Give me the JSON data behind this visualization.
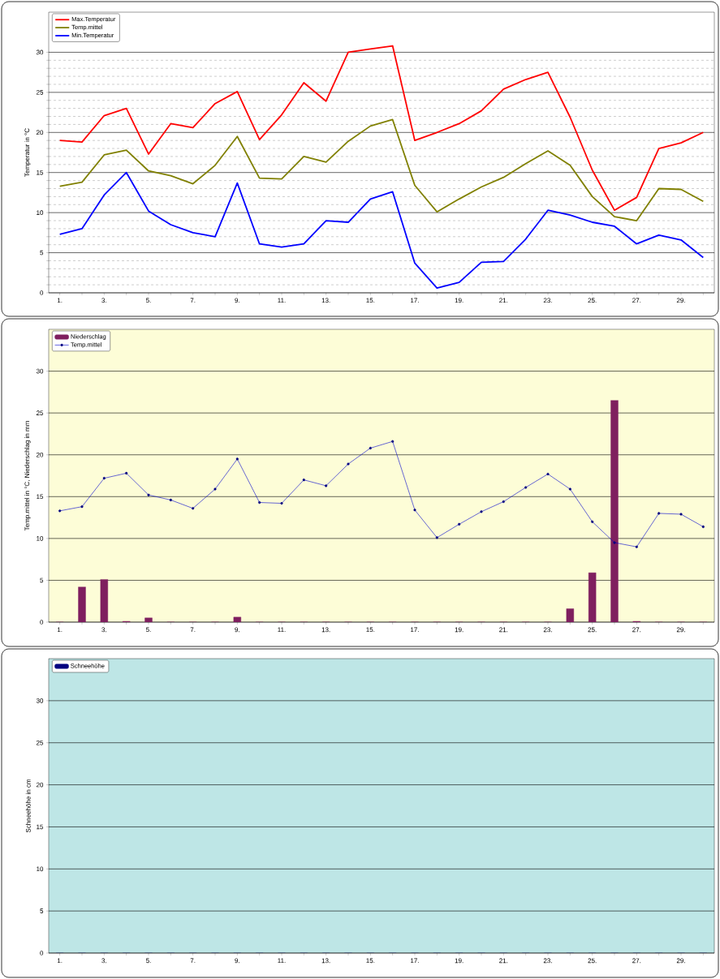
{
  "chart_data": [
    {
      "type": "line",
      "ylabel": "Temperatur  in °C",
      "categories": [
        "1.",
        null,
        "3.",
        null,
        "5.",
        null,
        "7.",
        null,
        "9.",
        null,
        "11.",
        null,
        "13.",
        null,
        "15.",
        null,
        "17.",
        null,
        "19.",
        null,
        "21.",
        null,
        "23.",
        null,
        "25.",
        null,
        "27.",
        null,
        "29.",
        null
      ],
      "series": [
        {
          "name": "Max.Temperatur",
          "color": "#ff0000",
          "values": [
            19.0,
            18.8,
            22.1,
            23.0,
            17.3,
            21.1,
            20.6,
            23.6,
            25.1,
            19.1,
            22.2,
            26.2,
            23.9,
            30.0,
            30.4,
            30.8,
            19.0,
            20.0,
            21.1,
            22.7,
            25.4,
            26.6,
            27.5,
            21.9,
            15.3,
            10.3,
            11.9,
            18.0,
            18.7,
            20.0
          ]
        },
        {
          "name": "Temp.mittel",
          "color": "#808000",
          "values": [
            13.3,
            13.8,
            17.2,
            17.8,
            15.2,
            14.6,
            13.6,
            15.9,
            19.5,
            14.3,
            14.2,
            17.0,
            16.3,
            18.9,
            20.8,
            21.6,
            13.4,
            10.1,
            11.7,
            13.2,
            14.4,
            16.1,
            17.7,
            15.9,
            12.0,
            9.5,
            9.0,
            13.0,
            12.9,
            11.4
          ]
        },
        {
          "name": "Min.Temperatur",
          "color": "#0000ff",
          "values": [
            7.3,
            8.0,
            12.2,
            15.0,
            10.2,
            8.5,
            7.5,
            7.0,
            13.7,
            6.1,
            5.7,
            6.1,
            9.0,
            8.8,
            11.7,
            12.6,
            3.7,
            0.6,
            1.3,
            3.8,
            3.9,
            6.7,
            10.3,
            9.7,
            8.8,
            8.3,
            6.1,
            7.2,
            6.6,
            4.4
          ]
        }
      ],
      "ylim": [
        0,
        35
      ],
      "yticks": [
        0,
        5,
        10,
        15,
        20,
        25,
        30
      ],
      "grid": "y",
      "legend": "top left"
    },
    {
      "type": "bar",
      "ylabel": "Temp.mittel  in °C, Niederschlag in mm",
      "categories": [
        "1.",
        null,
        "3.",
        null,
        "5.",
        null,
        "7.",
        null,
        "9.",
        null,
        "11.",
        null,
        "13.",
        null,
        "15.",
        null,
        "17.",
        null,
        "19.",
        null,
        "21.",
        null,
        "23.",
        null,
        "25.",
        null,
        "27.",
        null,
        "29.",
        null
      ],
      "series": [
        {
          "name": "Niederschlag",
          "type": "bar",
          "color": "#7f1f5f",
          "values": [
            0,
            4.2,
            5.1,
            0.1,
            0.5,
            0,
            0,
            0,
            0.6,
            0,
            0,
            0,
            0,
            0,
            0,
            0,
            0,
            0,
            0,
            0,
            0,
            0,
            0,
            1.6,
            5.9,
            26.5,
            0.1,
            0,
            0,
            0
          ]
        },
        {
          "name": "Temp.mittel",
          "type": "line",
          "marker": "circle",
          "color": "#0000cc",
          "values": [
            13.3,
            13.8,
            17.2,
            17.8,
            15.2,
            14.6,
            13.6,
            15.9,
            19.5,
            14.3,
            14.2,
            17.0,
            16.3,
            18.9,
            20.8,
            21.6,
            13.4,
            10.1,
            11.7,
            13.2,
            14.4,
            16.1,
            17.7,
            15.9,
            12.0,
            9.5,
            9.0,
            13.0,
            12.9,
            11.4
          ]
        }
      ],
      "ylim": [
        0,
        35
      ],
      "yticks": [
        0,
        5,
        10,
        15,
        20,
        25,
        30
      ],
      "grid": "y",
      "legend": "top left"
    },
    {
      "type": "bar",
      "ylabel": "Schneehöhe in cm",
      "categories": [
        "1.",
        null,
        "3.",
        null,
        "5.",
        null,
        "7.",
        null,
        "9.",
        null,
        "11.",
        null,
        "13.",
        null,
        "15.",
        null,
        "17.",
        null,
        "19.",
        null,
        "21.",
        null,
        "23.",
        null,
        "25.",
        null,
        "27.",
        null,
        "29.",
        null
      ],
      "series": [
        {
          "name": "Schneehöhe",
          "color": "#000080",
          "values": [
            0,
            0,
            0,
            0,
            0,
            0,
            0,
            0,
            0,
            0,
            0,
            0,
            0,
            0,
            0,
            0,
            0,
            0,
            0,
            0,
            0,
            0,
            0,
            0,
            0,
            0,
            0,
            0,
            0,
            0
          ]
        }
      ],
      "ylim": [
        0,
        35
      ],
      "yticks": [
        0,
        5,
        10,
        15,
        20,
        25,
        30
      ],
      "grid": "y",
      "legend": "top left"
    }
  ]
}
